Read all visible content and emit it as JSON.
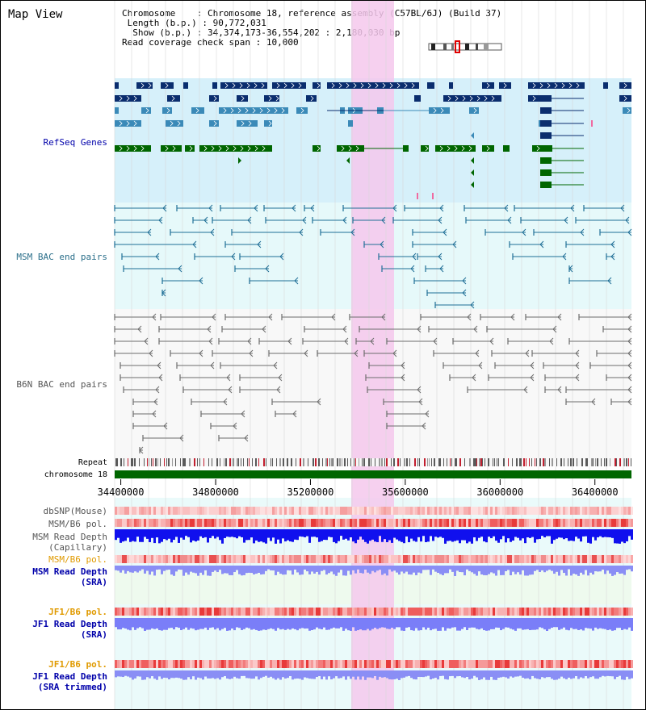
{
  "title": "Map View",
  "info": {
    "chromosome_key": "Chromosome",
    "chromosome_value": "Chromosome 18, reference assembly (C57BL/6J) (Build 37)",
    "length_key": "Length (b.p.)",
    "length_value": "90,772,031",
    "show_key": "Show (b.p.)",
    "show_value": "34,374,173-36,554,202 : 2,180,030 bp",
    "coverage_key": "Read coverage check span",
    "coverage_value": "10,000"
  },
  "tracks": {
    "refseq": "RefSeq Genes",
    "msm_bac": "MSM BAC end pairs",
    "b6n_bac": "B6N BAC end pairs",
    "repeat": "Repeat",
    "chromosome": "chromosome 18",
    "dbsnp": "dbSNP(Mouse)",
    "msm_b6_pol_1": "MSM/B6 pol.",
    "msm_depth_cap_1": "MSM Read Depth",
    "msm_depth_cap_2": "(Capillary)",
    "msm_b6_pol_2": "MSM/B6 pol.",
    "msm_depth_sra_1": "MSM Read Depth",
    "msm_depth_sra_2": "(SRA)",
    "jf1_b6_pol_1": "JF1/B6 pol.",
    "jf1_depth_sra_1": "JF1 Read Depth",
    "jf1_depth_sra_2": "(SRA)",
    "jf1_b6_pol_2": "JF1/B6 pol.",
    "jf1_depth_trim_1": "JF1 Read Depth",
    "jf1_depth_trim_2": "(SRA trimmed)"
  },
  "axis": {
    "ticks": [
      "34400000",
      "34800000",
      "35200000",
      "35600000",
      "36000000",
      "36400000"
    ],
    "start": 34374173,
    "end": 36554202
  },
  "colors": {
    "refseq_dark": "#0a2d6e",
    "refseq_mid": "#3b8ab8",
    "refseq_green": "#006600",
    "msm_bac": "#1f6f96",
    "b6n_bac": "#6d6d6d",
    "highlight": "#f5c8ec",
    "label_blue": "#0000aa",
    "label_teal": "#2b6f8a",
    "label_orange": "#e09a00",
    "label_gray": "#555555"
  }
}
